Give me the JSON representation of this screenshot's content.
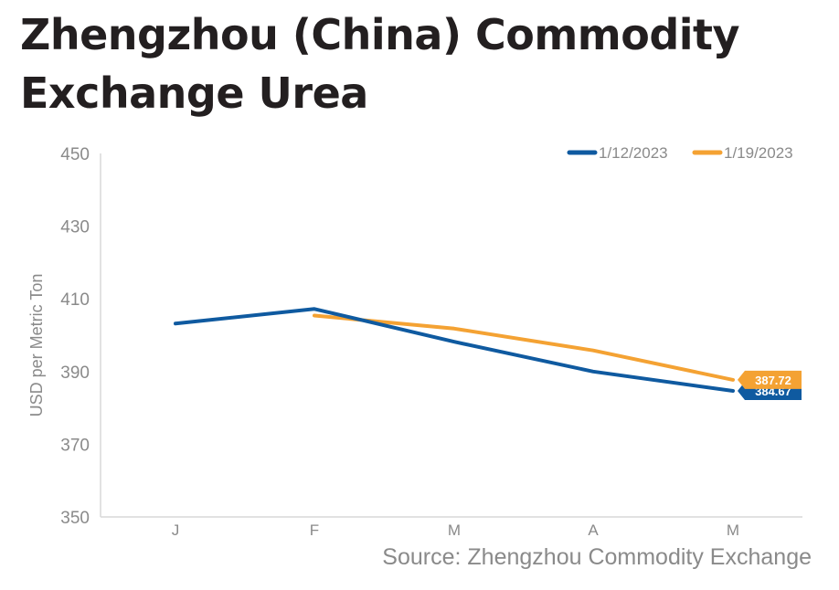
{
  "title": "Zhengzhou (China) Commodity Exchange Urea",
  "source": "Source: Zhengzhou Commodity Exchange",
  "chart_data": {
    "type": "line",
    "ylabel": "USD per Metric Ton",
    "xlabel": "",
    "ylim": [
      350,
      450
    ],
    "yticks": [
      350,
      370,
      390,
      410,
      430,
      450
    ],
    "categories": [
      "J",
      "F",
      "M",
      "A",
      "M"
    ],
    "grid": false,
    "legend_position": "top-right",
    "series": [
      {
        "name": "1/12/2023",
        "color": "#0f5aa0",
        "values": [
          403.2,
          407.2,
          398.2,
          390.0,
          384.67
        ],
        "end_label": "384.67"
      },
      {
        "name": "1/19/2023",
        "color": "#f4a233",
        "values": [
          null,
          405.4,
          401.8,
          395.8,
          387.72
        ],
        "end_label": "387.72"
      }
    ]
  }
}
